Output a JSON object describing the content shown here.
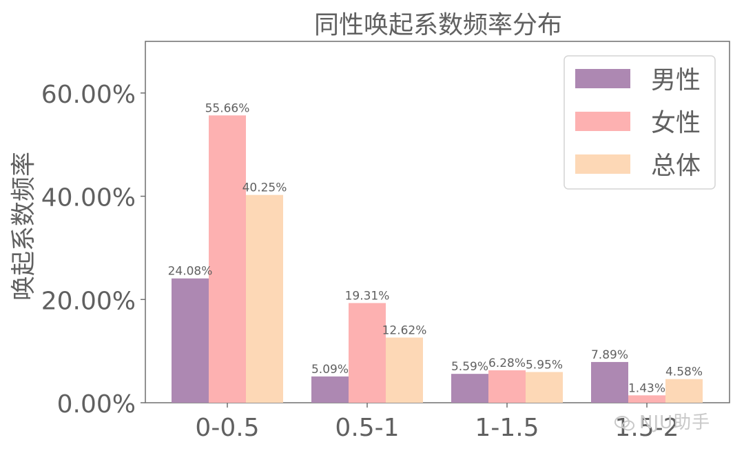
{
  "chart_data": {
    "type": "bar",
    "title": "同性唤起系数频率分布",
    "xlabel": "",
    "ylabel": "唤起系数频率",
    "categories": [
      "0-0.5",
      "0.5-1",
      "1-1.5",
      "1.5-2"
    ],
    "series": [
      {
        "name": "男性",
        "color": "#ad88b2",
        "values": [
          24.08,
          5.09,
          5.59,
          7.89
        ],
        "labels": [
          "24.08%",
          "5.09%",
          "5.59%",
          "7.89%"
        ]
      },
      {
        "name": "女性",
        "color": "#fdb1b1",
        "values": [
          55.66,
          19.31,
          6.28,
          1.43
        ],
        "labels": [
          "55.66%",
          "19.31%",
          "6.28%",
          "1.43%"
        ]
      },
      {
        "name": "总体",
        "color": "#fdd8b6",
        "values": [
          40.25,
          12.62,
          5.95,
          4.58
        ],
        "labels": [
          "40.25%",
          "12.62%",
          "5.95%",
          "4.58%"
        ]
      }
    ],
    "ylim": [
      0,
      70
    ],
    "yticks": [
      0,
      20,
      40,
      60
    ],
    "ytick_labels": [
      "0.00%",
      "20.00%",
      "40.00%",
      "60.00%"
    ],
    "grid": false,
    "legend_position": "top-right"
  },
  "watermark": {
    "text": "NJU助手",
    "icon": "wechat-icon"
  }
}
